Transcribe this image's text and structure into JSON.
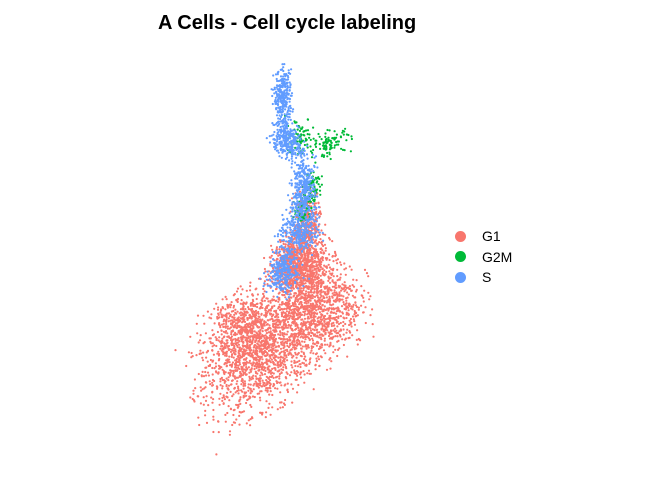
{
  "chart_data": {
    "type": "scatter",
    "title": "A Cells - Cell cycle labeling",
    "xlabel": "",
    "ylabel": "",
    "grid": false,
    "axes_visible": false,
    "legend_position": "right",
    "xlim": [
      -10,
      10
    ],
    "ylim": [
      -10,
      10
    ],
    "series": [
      {
        "name": "G1",
        "color": "#F8766D",
        "approx_points": 4200,
        "regions": [
          {
            "cx": -2.5,
            "cy": -5.2,
            "rx": 4.3,
            "ry": 2.6,
            "rot": 25,
            "weight": 0.42
          },
          {
            "cx": 1.8,
            "cy": -3.0,
            "rx": 2.8,
            "ry": 2.4,
            "rot": 10,
            "weight": 0.22
          },
          {
            "cx": 0.6,
            "cy": -1.0,
            "rx": 2.0,
            "ry": 1.6,
            "rot": 30,
            "weight": 0.14
          },
          {
            "cx": 0.9,
            "cy": 1.4,
            "rx": 0.9,
            "ry": 1.5,
            "rot": 0,
            "weight": 0.07
          },
          {
            "cx": -0.2,
            "cy": -0.5,
            "rx": 1.6,
            "ry": 1.2,
            "rot": 40,
            "weight": 0.08
          },
          {
            "cx": -4.2,
            "cy": -4.0,
            "rx": 2.2,
            "ry": 1.6,
            "rot": 20,
            "weight": 0.07
          }
        ]
      },
      {
        "name": "G2M",
        "color": "#00BA38",
        "approx_points": 320,
        "regions": [
          {
            "cx": 2.6,
            "cy": 5.6,
            "rx": 1.4,
            "ry": 0.6,
            "rot": 10,
            "weight": 0.3
          },
          {
            "cx": 1.3,
            "cy": 3.2,
            "rx": 0.7,
            "ry": 1.0,
            "rot": -30,
            "weight": 0.25
          },
          {
            "cx": 0.3,
            "cy": 6.0,
            "rx": 0.9,
            "ry": 0.9,
            "rot": 0,
            "weight": 0.25
          },
          {
            "cx": 0.6,
            "cy": 2.0,
            "rx": 0.6,
            "ry": 0.6,
            "rot": 0,
            "weight": 0.2
          }
        ]
      },
      {
        "name": "S",
        "color": "#619CFF",
        "approx_points": 1500,
        "regions": [
          {
            "cx": -0.9,
            "cy": 8.0,
            "rx": 0.6,
            "ry": 1.3,
            "rot": 0,
            "weight": 0.2
          },
          {
            "cx": -0.5,
            "cy": 5.7,
            "rx": 1.2,
            "ry": 0.8,
            "rot": -35,
            "weight": 0.2
          },
          {
            "cx": 0.6,
            "cy": 3.2,
            "rx": 0.8,
            "ry": 1.4,
            "rot": -10,
            "weight": 0.22
          },
          {
            "cx": 0.3,
            "cy": 1.0,
            "rx": 1.4,
            "ry": 1.1,
            "rot": 20,
            "weight": 0.2
          },
          {
            "cx": -0.9,
            "cy": -1.2,
            "rx": 1.2,
            "ry": 1.0,
            "rot": 30,
            "weight": 0.18
          }
        ]
      }
    ]
  }
}
